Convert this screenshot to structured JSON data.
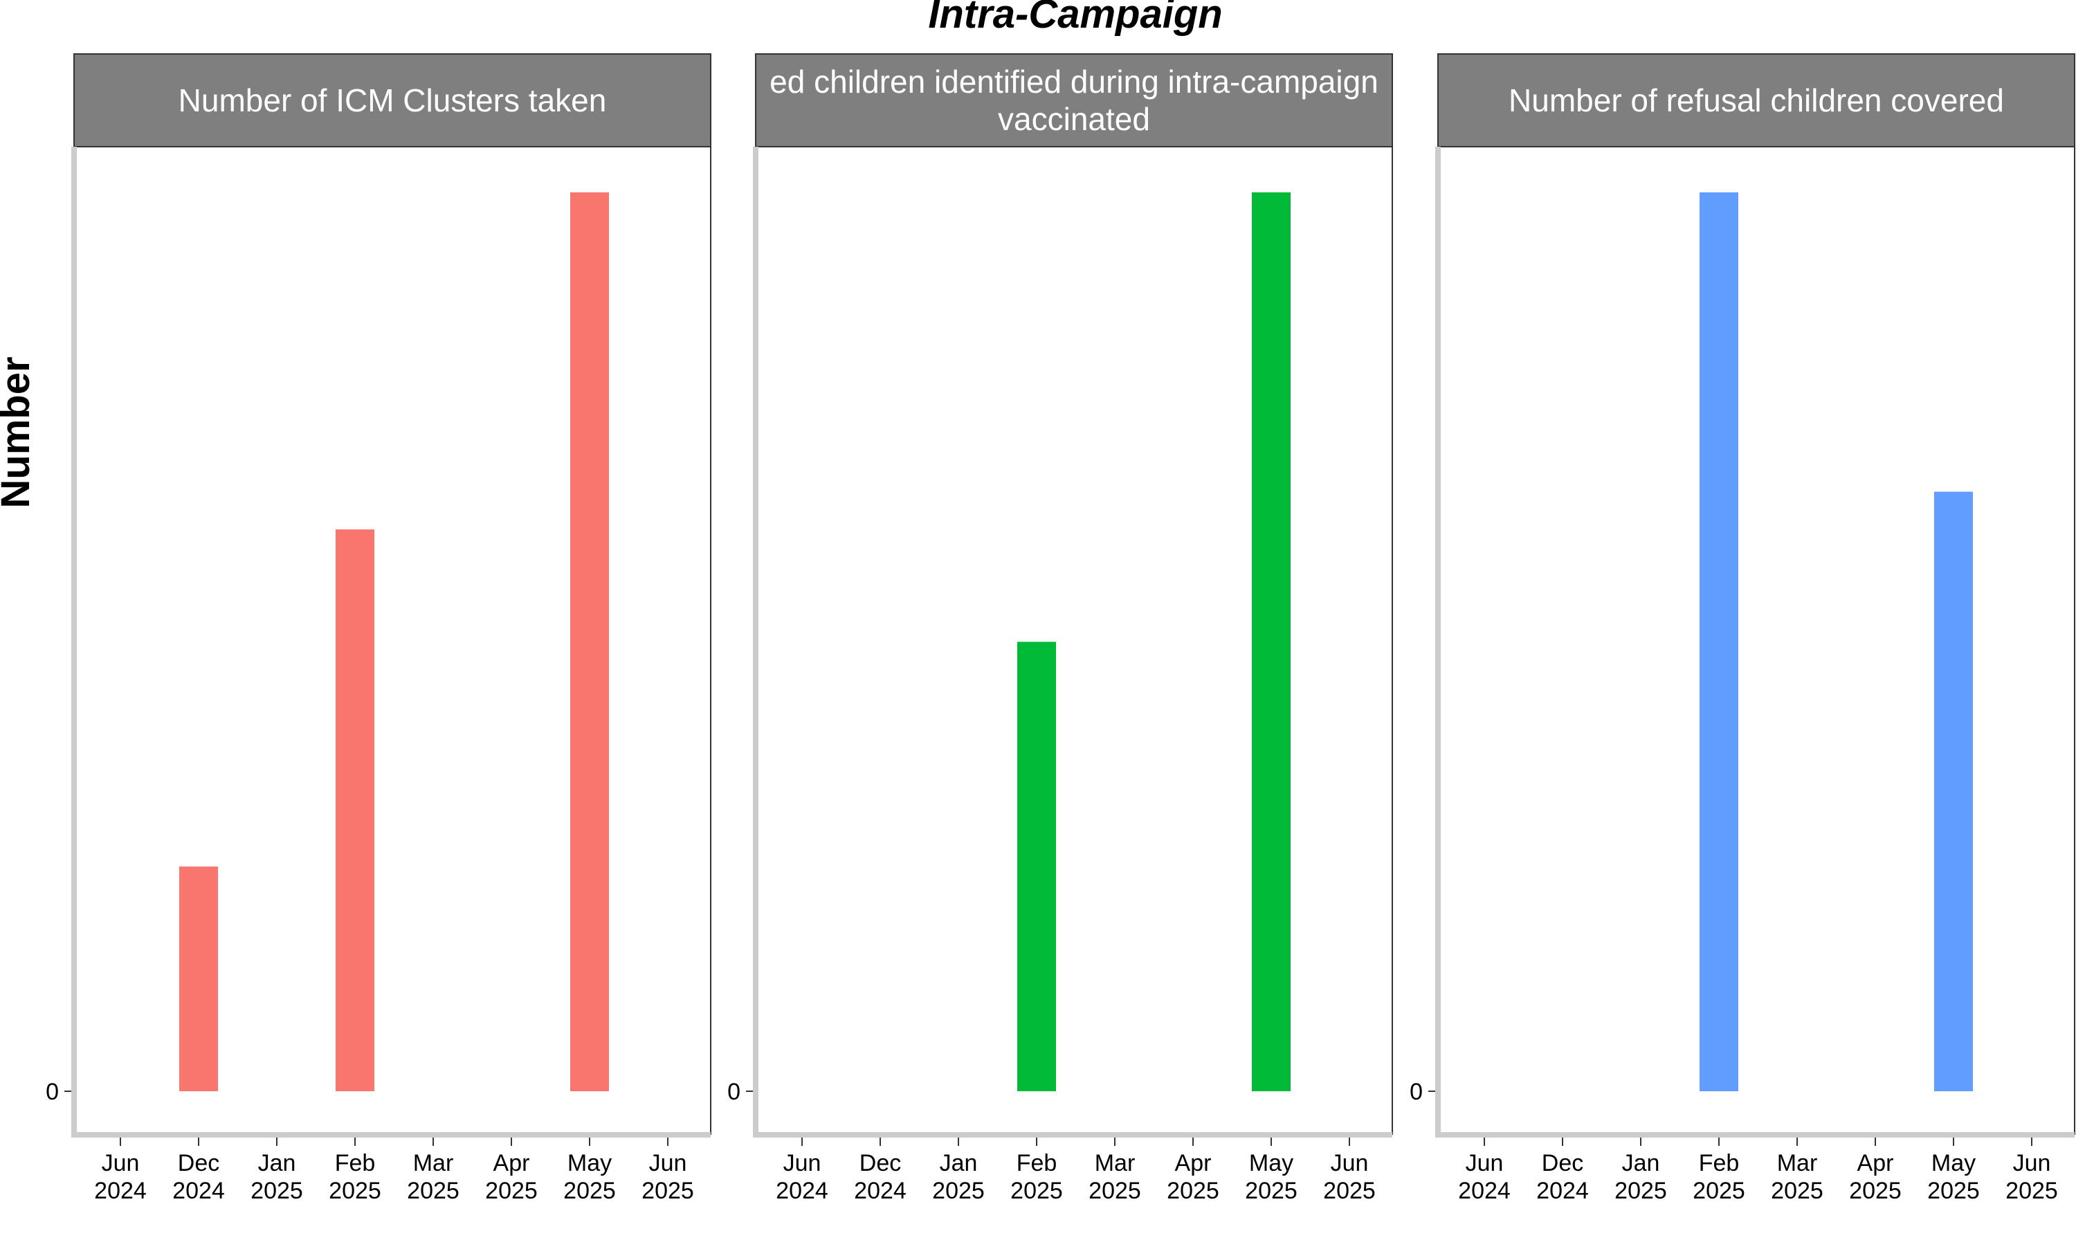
{
  "chart_data": {
    "title": "Intra-Campaign",
    "ylabel": "Number",
    "xlabel": "",
    "type": "bar",
    "grid": false,
    "x_ticks": [
      {
        "date": "2024-06-01",
        "label": [
          "Jun",
          "2024"
        ]
      },
      {
        "date": "2024-12-01",
        "label": [
          "Dec",
          "2024"
        ]
      },
      {
        "date": "2025-01-01",
        "label": [
          "Jan",
          "2025"
        ]
      },
      {
        "date": "2025-02-01",
        "label": [
          "Feb",
          "2025"
        ]
      },
      {
        "date": "2025-03-01",
        "label": [
          "Mar",
          "2025"
        ]
      },
      {
        "date": "2025-04-01",
        "label": [
          "Apr",
          "2025"
        ]
      },
      {
        "date": "2025-05-01",
        "label": [
          "May",
          "2025"
        ]
      },
      {
        "date": "2025-06-01",
        "label": [
          "Jun",
          "2025"
        ]
      }
    ],
    "y_ticks": [
      0
    ],
    "panels": [
      {
        "strip_lines": [
          "Number of ICM Clusters taken"
        ],
        "color": "#F8766D",
        "bars": [
          {
            "tick_index": 1,
            "value": 0.25
          },
          {
            "tick_index": 3,
            "value": 0.625
          },
          {
            "tick_index": 6,
            "value": 1.0
          }
        ]
      },
      {
        "strip_lines": [
          "ed children identified during intra-campaign",
          "vaccinated"
        ],
        "color": "#00BA38",
        "bars": [
          {
            "tick_index": 3,
            "value": 0.5
          },
          {
            "tick_index": 6,
            "value": 1.0
          }
        ]
      },
      {
        "strip_lines": [
          "Number of refusal children covered"
        ],
        "color": "#619CFF",
        "bars": [
          {
            "tick_index": 3,
            "value": 1.0
          },
          {
            "tick_index": 6,
            "value": 0.667
          }
        ]
      }
    ]
  }
}
